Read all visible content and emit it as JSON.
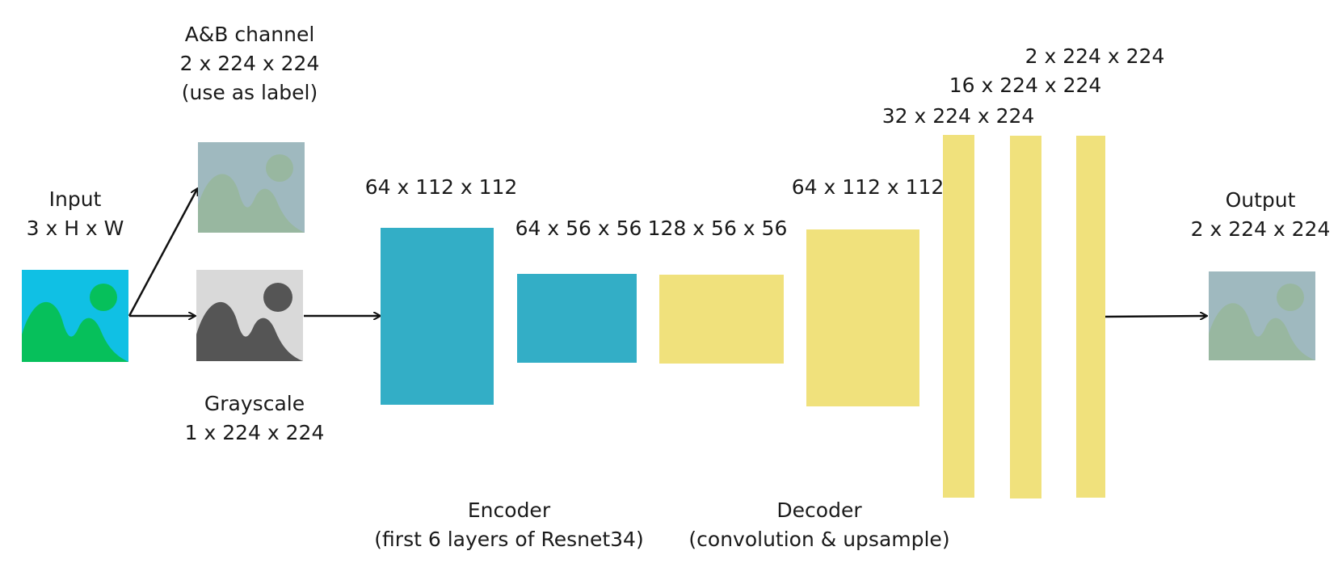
{
  "input": {
    "title": "Input",
    "shape": "3 x H x W"
  },
  "ab_channel": {
    "title": "A&B channel",
    "shape": "2 x 224 x 224",
    "note": "(use as label)"
  },
  "grayscale": {
    "title": "Grayscale",
    "shape": "1 x 224 x 224"
  },
  "output": {
    "title": "Output",
    "shape": "2 x 224 x 224"
  },
  "encoder": {
    "title": "Encoder",
    "subtitle": "(first 6 layers of Resnet34)",
    "blocks": [
      "64 x 112 x 112",
      "64 x 56 x 56"
    ]
  },
  "decoder": {
    "title": "Decoder",
    "subtitle": "(convolution & upsample)",
    "blocks": [
      "128 x 56 x 56",
      "64 x 112 x 112",
      "32 x 224 x 224",
      "16 x 224 x 224",
      "2 x 224 x 224"
    ]
  },
  "colors": {
    "encoder": "#33aec6",
    "decoder": "#f0e17c",
    "input_sky": "#10c0e4",
    "input_hills": "#06c05b",
    "gray_bg": "#d9d9d9",
    "gray_hills": "#555555",
    "label_bg": "#9fb9bf",
    "label_hills": "#98b7a0"
  },
  "icons": [
    "image-icon"
  ]
}
